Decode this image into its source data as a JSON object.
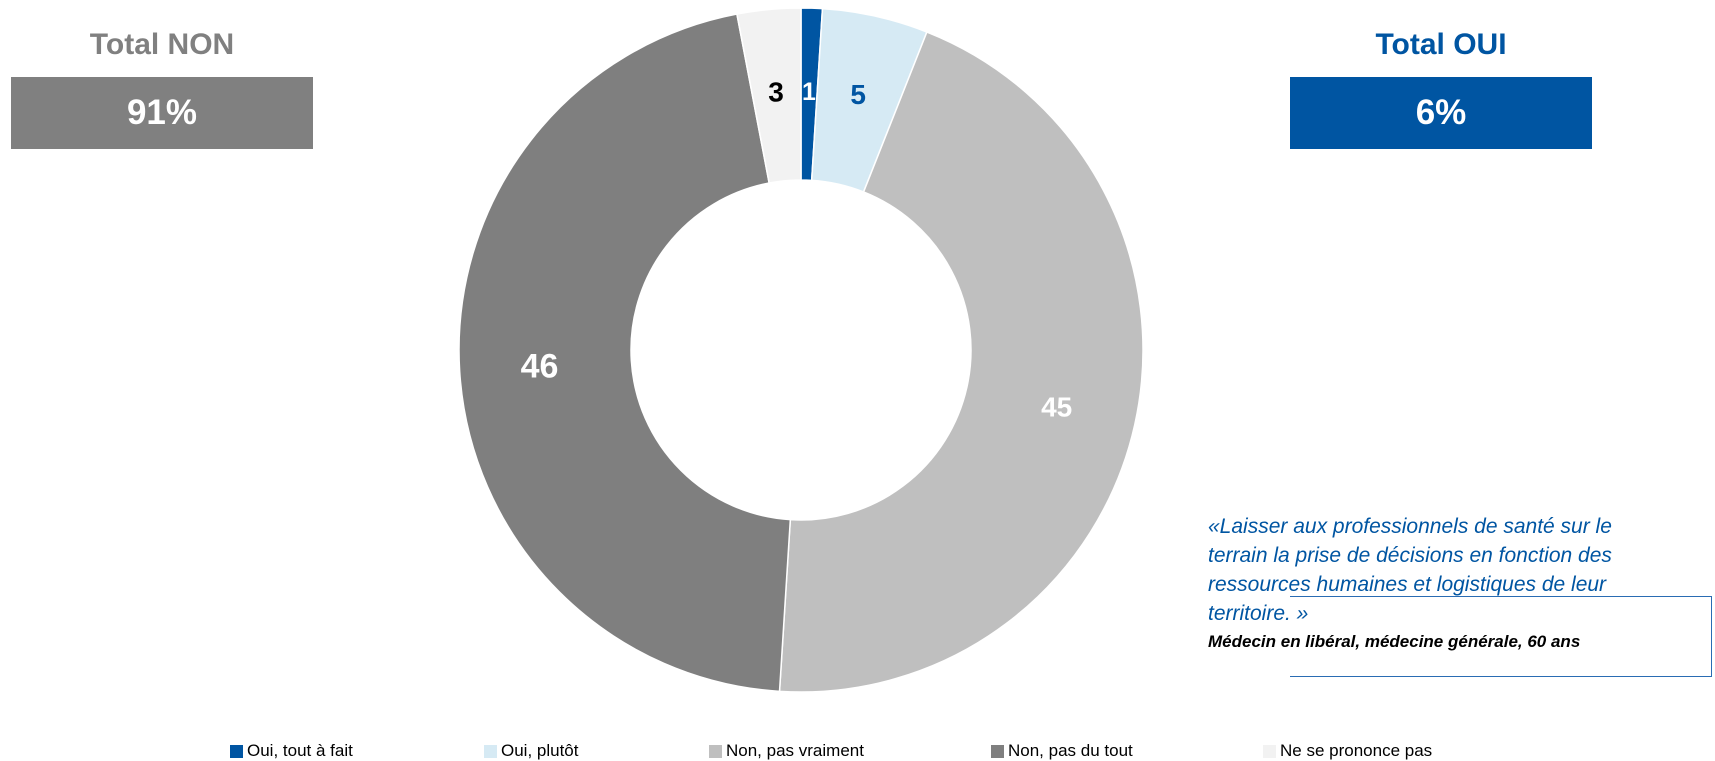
{
  "totals": {
    "non": {
      "title": "Total NON",
      "value": "91%"
    },
    "oui": {
      "title": "Total OUI",
      "value": "6%"
    }
  },
  "quote": {
    "text": "«Laisser aux professionnels de santé sur le terrain la prise de décisions en fonction des ressources humaines et logistiques de leur territoire. »",
    "author": "Médecin en libéral, médecine générale, 60 ans"
  },
  "chart_data": {
    "type": "pie",
    "subtype": "donut",
    "categories": [
      "Oui, tout à fait",
      "Oui, plutôt",
      "Non, pas vraiment",
      "Non, pas du tout",
      "Ne se prononce pas"
    ],
    "values": [
      1,
      5,
      45,
      46,
      3
    ],
    "data_labels": [
      "1",
      "5",
      "45",
      "46",
      "3"
    ],
    "colors": [
      "#0055a2",
      "#d6eaf4",
      "#bfbfbf",
      "#7f7f7f",
      "#f2f2f2"
    ],
    "label_colors": [
      "#ffffff",
      "#0055a2",
      "#ffffff",
      "#ffffff",
      "#000000"
    ],
    "legend_position": "bottom"
  }
}
